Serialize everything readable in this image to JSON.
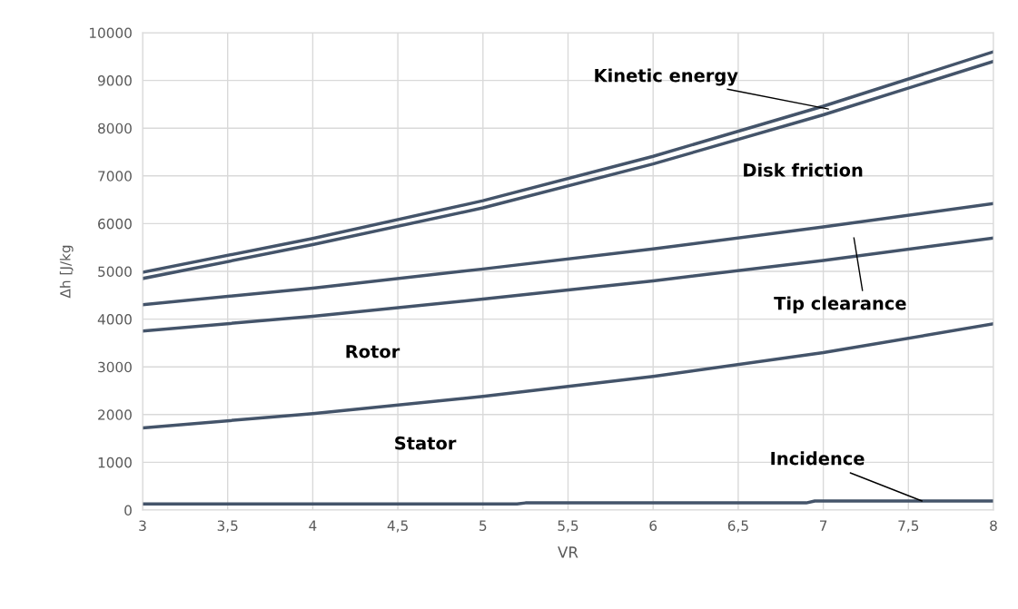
{
  "chart_data": {
    "type": "line",
    "xlabel": "VR",
    "ylabel": "Δh [J/kg",
    "x": [
      3,
      4,
      5,
      6,
      7,
      8
    ],
    "series": [
      {
        "color": "#44546a",
        "values": [
          4980,
          5690,
          6480,
          7410,
          8460,
          9600
        ]
      },
      {
        "color": "#44546a",
        "values": [
          4850,
          5560,
          6330,
          7250,
          8280,
          9400
        ]
      },
      {
        "color": "#44546a",
        "values": [
          4300,
          4650,
          5050,
          5470,
          5930,
          6420
        ]
      },
      {
        "color": "#44546a",
        "values": [
          3750,
          4060,
          4420,
          4800,
          5230,
          5700
        ]
      },
      {
        "color": "#44546a",
        "values": [
          1720,
          2020,
          2380,
          2800,
          3300,
          3900
        ]
      },
      {
        "color": "#44546a",
        "x": [
          3,
          5.2,
          5.25,
          6.9,
          6.95,
          8
        ],
        "values": [
          130,
          130,
          150,
          150,
          190,
          190
        ]
      }
    ],
    "xlim": [
      3,
      8
    ],
    "xticks": [
      3,
      {
        "value": 3.5,
        "label": "3,5"
      },
      4,
      {
        "value": 4.5,
        "label": "4,5"
      },
      5,
      {
        "value": 5.5,
        "label": "5,5"
      },
      6,
      {
        "value": 6.5,
        "label": "6,5"
      },
      7,
      {
        "value": 7.5,
        "label": "7,5"
      },
      8
    ],
    "ylim": [
      0,
      10000
    ],
    "yticks": [
      0,
      1000,
      2000,
      3000,
      4000,
      5000,
      6000,
      7000,
      8000,
      9000,
      10000
    ],
    "grid": true,
    "marker": "none",
    "line_style": "solid",
    "annotations": [
      {
        "text": "Kinetic energy",
        "x": 7.03,
        "y": 8400
      },
      "Disk friction",
      "Tip clearance",
      "Rotor",
      "Stator",
      {
        "text": "Incidence",
        "x": 7.58,
        "y": 190
      }
    ]
  }
}
